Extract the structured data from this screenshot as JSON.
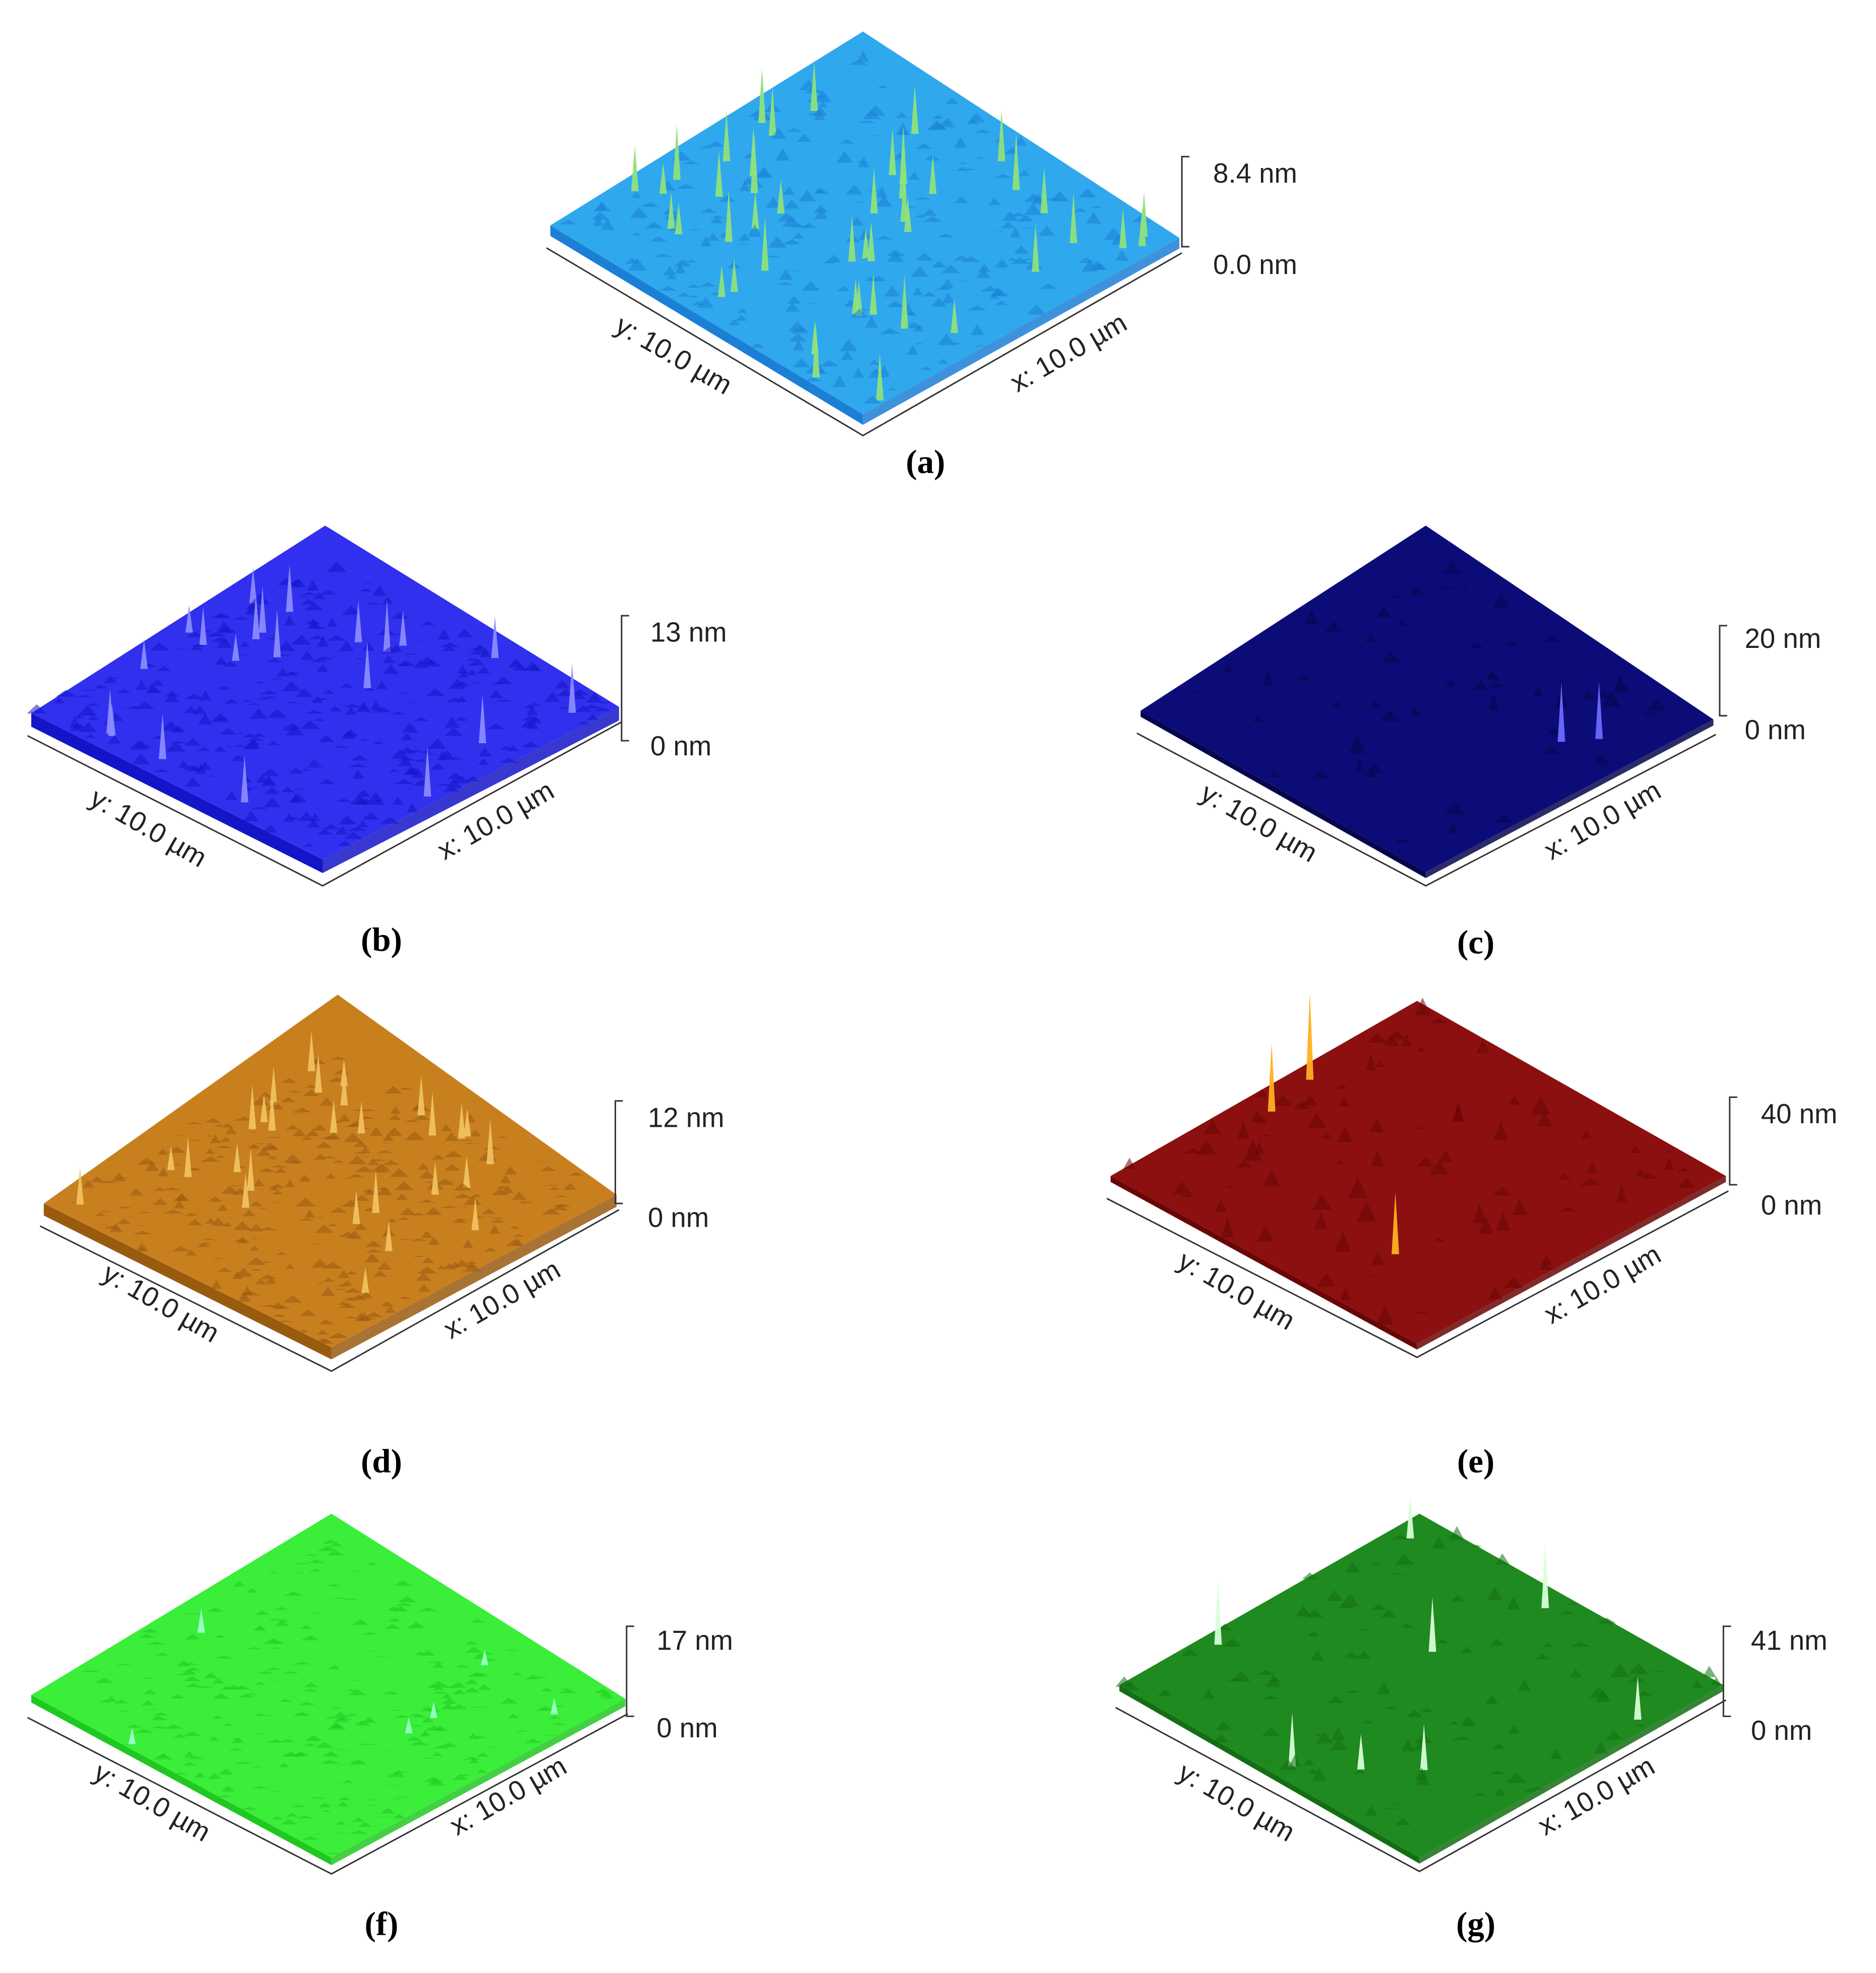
{
  "panels": [
    {
      "label": "(a)",
      "z_max": "8.4 nm",
      "z_min": "0.0 nm",
      "x_axis": "x: 10.0 µm",
      "y_axis": "y: 10.0 µm"
    },
    {
      "label": "(b)",
      "z_max": "13 nm",
      "z_min": "0 nm",
      "x_axis": "x: 10.0 µm",
      "y_axis": "y: 10.0 µm"
    },
    {
      "label": "(c)",
      "z_max": "20 nm",
      "z_min": "0 nm",
      "x_axis": "x: 10.0 µm",
      "y_axis": "y: 10.0 µm"
    },
    {
      "label": "(d)",
      "z_max": "12 nm",
      "z_min": "0 nm",
      "x_axis": "x: 10.0 µm",
      "y_axis": "y: 10.0 µm"
    },
    {
      "label": "(e)",
      "z_max": "40 nm",
      "z_min": "0 nm",
      "x_axis": "x: 10.0 µm",
      "y_axis": "y: 10.0 µm"
    },
    {
      "label": "(f)",
      "z_max": "17 nm",
      "z_min": "0 nm",
      "x_axis": "x: 10.0 µm",
      "y_axis": "y: 10.0 µm"
    },
    {
      "label": "(g)",
      "z_max": "41 nm",
      "z_min": "0 nm",
      "x_axis": "x: 10.0 µm",
      "y_axis": "y: 10.0 µm"
    }
  ]
}
